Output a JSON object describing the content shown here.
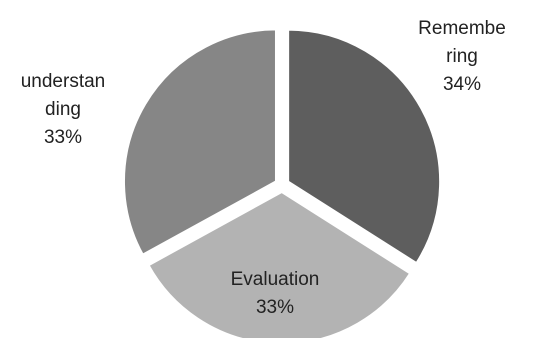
{
  "chart_data": {
    "type": "pie",
    "title": "",
    "slices": [
      {
        "label_lines": [
          "Remembe",
          "ring"
        ],
        "value": 34,
        "value_label": "34%",
        "color": "#5e5e5e"
      },
      {
        "label_lines": [
          "Evaluation"
        ],
        "value": 33,
        "value_label": "33%",
        "color": "#b3b3b3"
      },
      {
        "label_lines": [
          "understan",
          "ding"
        ],
        "value": 33,
        "value_label": "33%",
        "color": "#868686"
      }
    ],
    "exploded": true,
    "start_angle_deg": 0,
    "direction": "clockwise"
  }
}
